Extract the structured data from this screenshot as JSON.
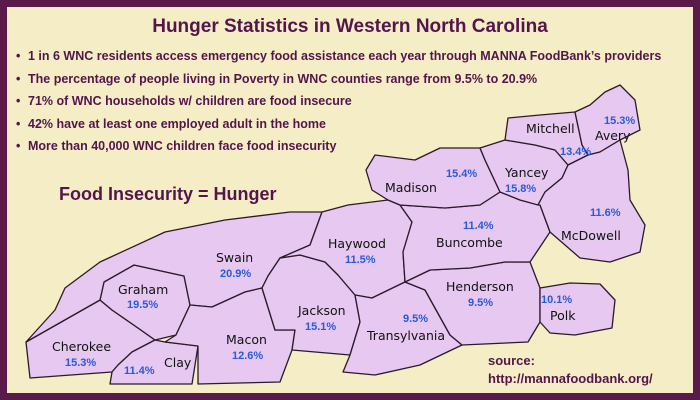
{
  "title": "Hunger Statistics in Western North Carolina",
  "bullets": [
    "1 in 6 WNC residents access emergency food assistance each year through MANNA FoodBank’s providers",
    "The percentage of people living in Poverty in WNC counties range from 9.5% to 20.9%",
    "71% of WNC households w/ children are food insecure",
    "42% have at least one employed adult in the home",
    "More than 40,000 WNC children face food insecurity"
  ],
  "slogan": "Food Insecurity = Hunger",
  "source": {
    "label": "source:",
    "url": "http://mannafoodbank.org/"
  },
  "colors": {
    "border": "#5a1a4a",
    "background": "#f4edc6",
    "county_fill": "#e6c8f0",
    "text": "#54154a",
    "percent": "#2a5ad8"
  },
  "counties": [
    {
      "name": "Cherokee",
      "value": "15.3%"
    },
    {
      "name": "Clay",
      "value": "11.4%"
    },
    {
      "name": "Graham",
      "value": "19.5%"
    },
    {
      "name": "Swain",
      "value": "20.9%"
    },
    {
      "name": "Macon",
      "value": "12.6%"
    },
    {
      "name": "Jackson",
      "value": "15.1%"
    },
    {
      "name": "Haywood",
      "value": "11.5%"
    },
    {
      "name": "Transylvania",
      "value": "9.5%"
    },
    {
      "name": "Henderson",
      "value": "9.5%"
    },
    {
      "name": "Buncombe",
      "value": "11.4%"
    },
    {
      "name": "Madison",
      "value": "15.4%"
    },
    {
      "name": "Yancey",
      "value": "15.8%"
    },
    {
      "name": "Mitchell",
      "value": "13.4%"
    },
    {
      "name": "Avery",
      "value": "15.3%"
    },
    {
      "name": "McDowell",
      "value": "11.6%"
    },
    {
      "name": "Polk",
      "value": "10.1%"
    }
  ]
}
